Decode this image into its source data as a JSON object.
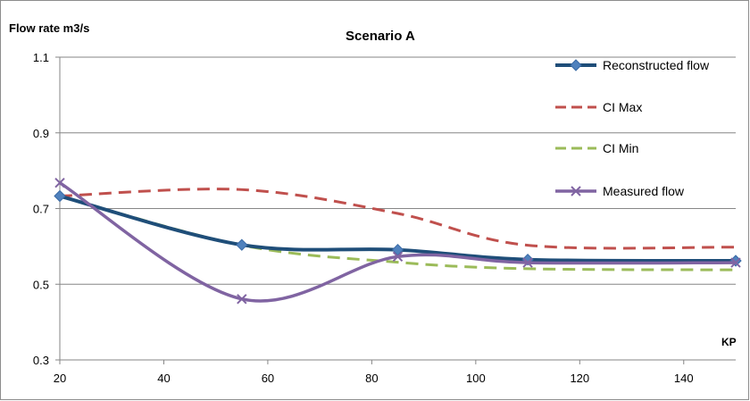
{
  "chart_data": {
    "type": "line",
    "title": "Scenario A",
    "xlabel": "KP",
    "ylabel": "Flow rate m3/s",
    "xlim": [
      20,
      150
    ],
    "ylim": [
      0.3,
      1.1
    ],
    "x_ticks": [
      20,
      40,
      60,
      80,
      100,
      120,
      140
    ],
    "y_ticks": [
      1.1,
      0.9,
      0.7,
      0.5,
      0.3
    ],
    "y_tick_labels": [
      "1.1",
      "0.9",
      "0.7",
      "0.5",
      "0.3"
    ],
    "grid": "horizontal",
    "legend_position": "right",
    "series": [
      {
        "name": "Reconstructed flow",
        "color": "#1f4e79",
        "style": "solid-diamond",
        "x": [
          20,
          55,
          85,
          110,
          150
        ],
        "values": [
          0.733,
          0.604,
          0.591,
          0.565,
          0.562
        ]
      },
      {
        "name": "CI Max",
        "color": "#c0504d",
        "style": "dashed",
        "x": [
          20,
          55,
          85,
          110,
          150
        ],
        "values": [
          0.733,
          0.75,
          0.687,
          0.603,
          0.598
        ]
      },
      {
        "name": "CI Min",
        "color": "#9bbb59",
        "style": "dashed",
        "x": [
          20,
          55,
          85,
          110,
          150
        ],
        "values": [
          0.733,
          0.603,
          0.558,
          0.541,
          0.538
        ]
      },
      {
        "name": "Measured flow",
        "color": "#8064a2",
        "style": "solid-x",
        "x": [
          20,
          55,
          85,
          110,
          150
        ],
        "values": [
          0.768,
          0.461,
          0.573,
          0.557,
          0.557
        ]
      }
    ]
  }
}
